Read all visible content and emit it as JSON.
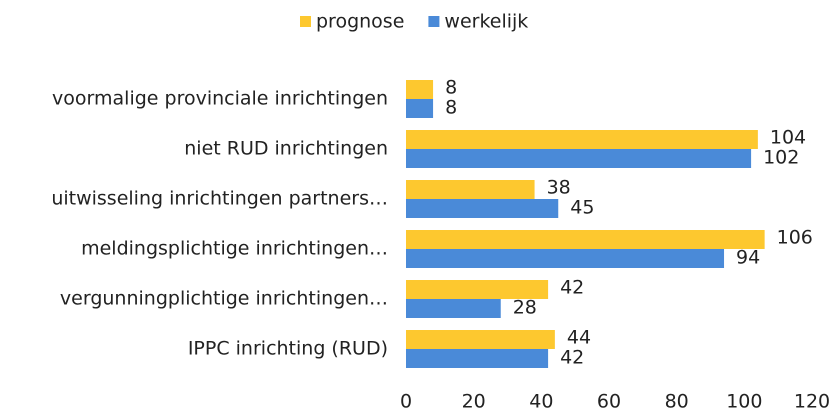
{
  "chart_data": {
    "type": "bar",
    "orientation": "horizontal",
    "categories": [
      "voormalige provinciale inrichtingen",
      "niet RUD inrichtingen",
      "uitwisseling inrichtingen partners…",
      "meldingsplichtige inrichtingen…",
      "vergunningplichtige inrichtingen…",
      "IPPC inrichting (RUD)"
    ],
    "series": [
      {
        "name": "prognose",
        "color": "#fdc82f",
        "values": [
          8,
          104,
          38,
          106,
          42,
          44
        ]
      },
      {
        "name": "werkelijk",
        "color": "#4a8ad8",
        "values": [
          8,
          102,
          45,
          94,
          28,
          42
        ]
      }
    ],
    "xlim": [
      0,
      120
    ],
    "xticks": [
      0,
      20,
      40,
      60,
      80,
      100,
      120
    ],
    "grid": false,
    "legend": "top"
  }
}
